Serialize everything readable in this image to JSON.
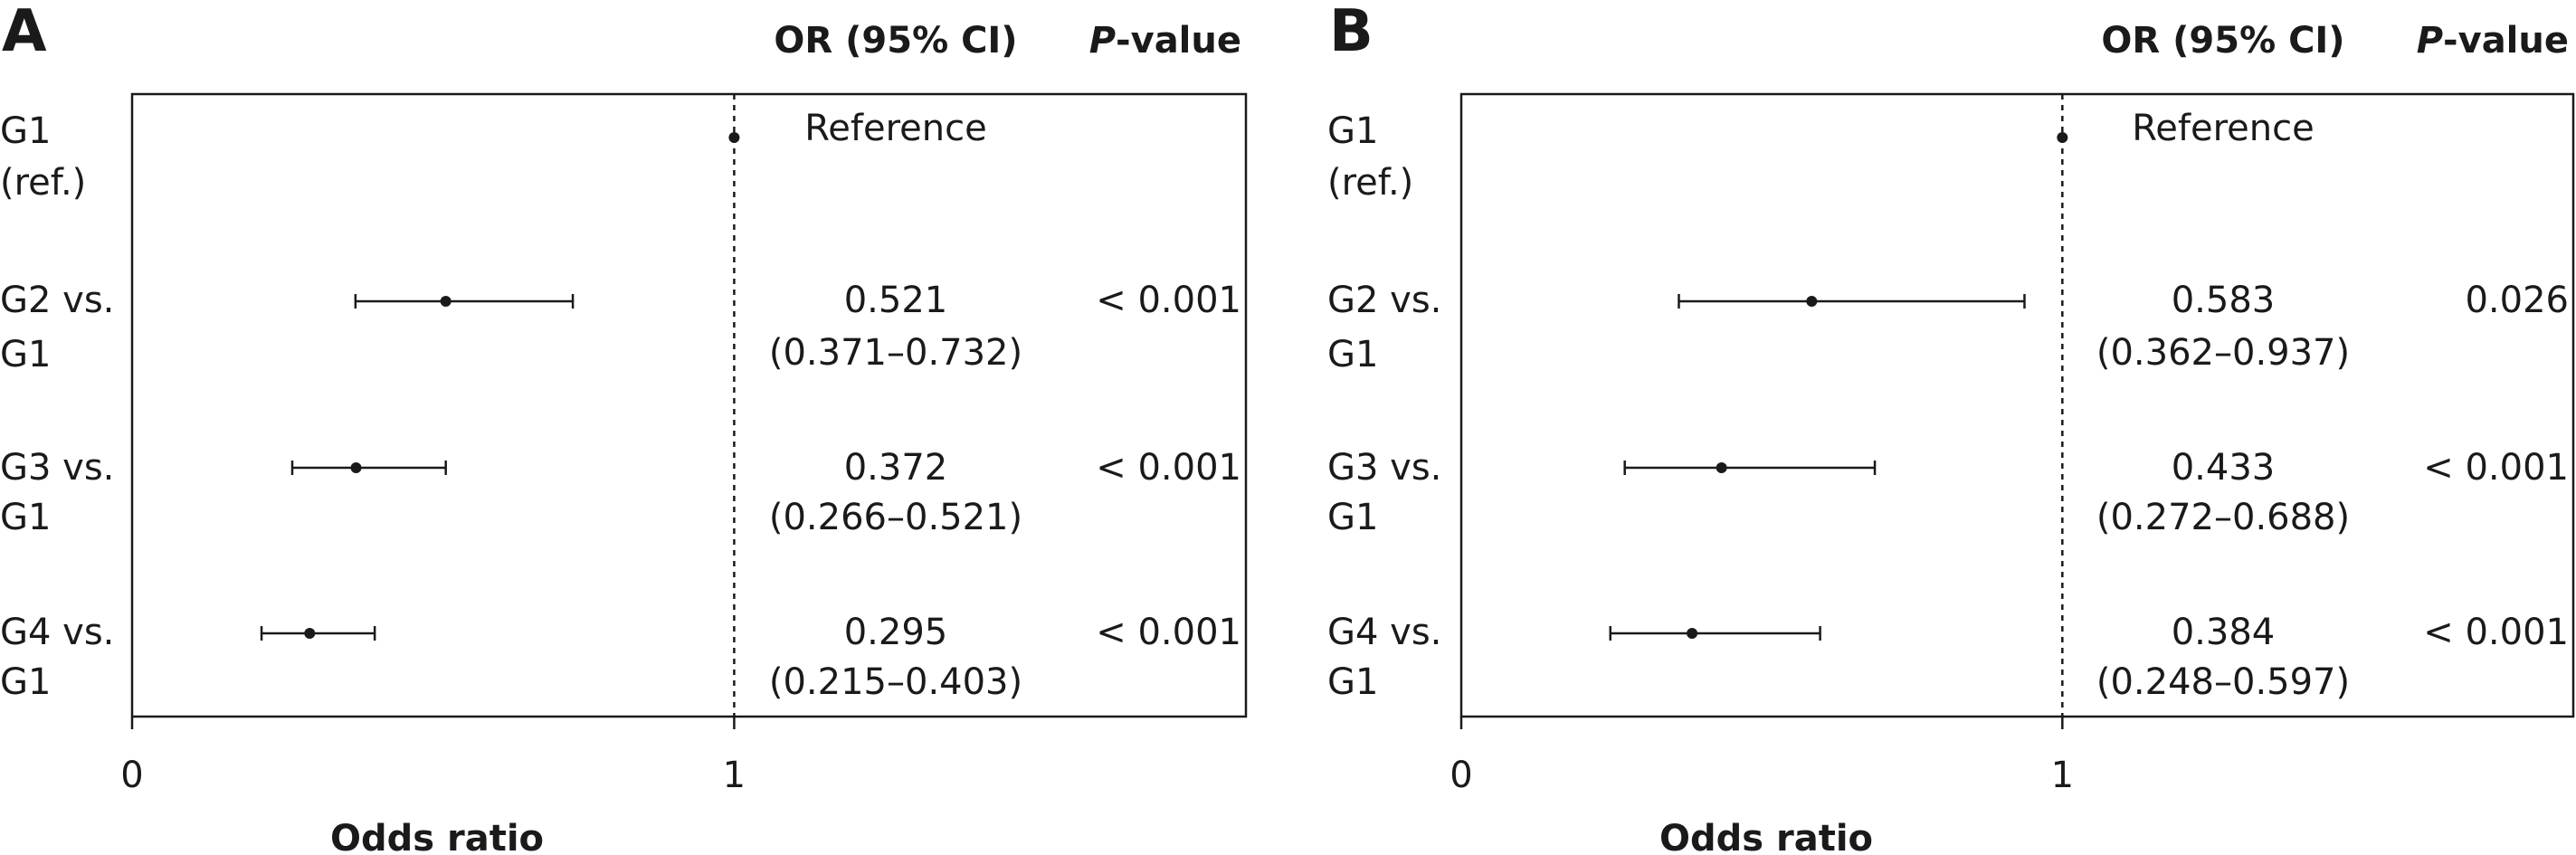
{
  "chart_data": [
    {
      "type": "forest",
      "panel": "A",
      "header_or": "OR (95% CI)",
      "header_p_italic": "P",
      "header_p_rest": "-value",
      "xlabel": "Odds ratio",
      "xlim": [
        0,
        1.85
      ],
      "xticks": [
        {
          "value": 0,
          "label": "0"
        },
        {
          "value": 1,
          "label": "1"
        }
      ],
      "reference_line": 1,
      "rows": [
        {
          "label_lines": [
            "G1",
            "(ref.)"
          ],
          "or": 1.0,
          "ci": null,
          "or_text": "Reference",
          "ci_text": "",
          "p_text": ""
        },
        {
          "label_lines": [
            "G2 vs.",
            "G1"
          ],
          "or": 0.521,
          "ci": [
            0.371,
            0.732
          ],
          "or_text": "0.521",
          "ci_text": "(0.371–0.732)",
          "p_text": "< 0.001"
        },
        {
          "label_lines": [
            "G3 vs.",
            "G1"
          ],
          "or": 0.372,
          "ci": [
            0.266,
            0.521
          ],
          "or_text": "0.372",
          "ci_text": "(0.266–0.521)",
          "p_text": "< 0.001"
        },
        {
          "label_lines": [
            "G4 vs.",
            "G1"
          ],
          "or": 0.295,
          "ci": [
            0.215,
            0.403
          ],
          "or_text": "0.295",
          "ci_text": "(0.215–0.403)",
          "p_text": "< 0.001"
        }
      ]
    },
    {
      "type": "forest",
      "panel": "B",
      "header_or": "OR (95% CI)",
      "header_p_italic": "P",
      "header_p_rest": "-value",
      "xlabel": "Odds ratio",
      "xlim": [
        0,
        1.85
      ],
      "xticks": [
        {
          "value": 0,
          "label": "0"
        },
        {
          "value": 1,
          "label": "1"
        }
      ],
      "reference_line": 1,
      "rows": [
        {
          "label_lines": [
            "G1",
            "(ref.)"
          ],
          "or": 1.0,
          "ci": null,
          "or_text": "Reference",
          "ci_text": "",
          "p_text": ""
        },
        {
          "label_lines": [
            "G2 vs.",
            "G1"
          ],
          "or": 0.583,
          "ci": [
            0.362,
            0.937
          ],
          "or_text": "0.583",
          "ci_text": "(0.362–0.937)",
          "p_text": "0.026"
        },
        {
          "label_lines": [
            "G3 vs.",
            "G1"
          ],
          "or": 0.433,
          "ci": [
            0.272,
            0.688
          ],
          "or_text": "0.433",
          "ci_text": "(0.272–0.688)",
          "p_text": "< 0.001"
        },
        {
          "label_lines": [
            "G4 vs.",
            "G1"
          ],
          "or": 0.384,
          "ci": [
            0.248,
            0.597
          ],
          "or_text": "0.384",
          "ci_text": "(0.248–0.597)",
          "p_text": "< 0.001"
        }
      ]
    }
  ]
}
